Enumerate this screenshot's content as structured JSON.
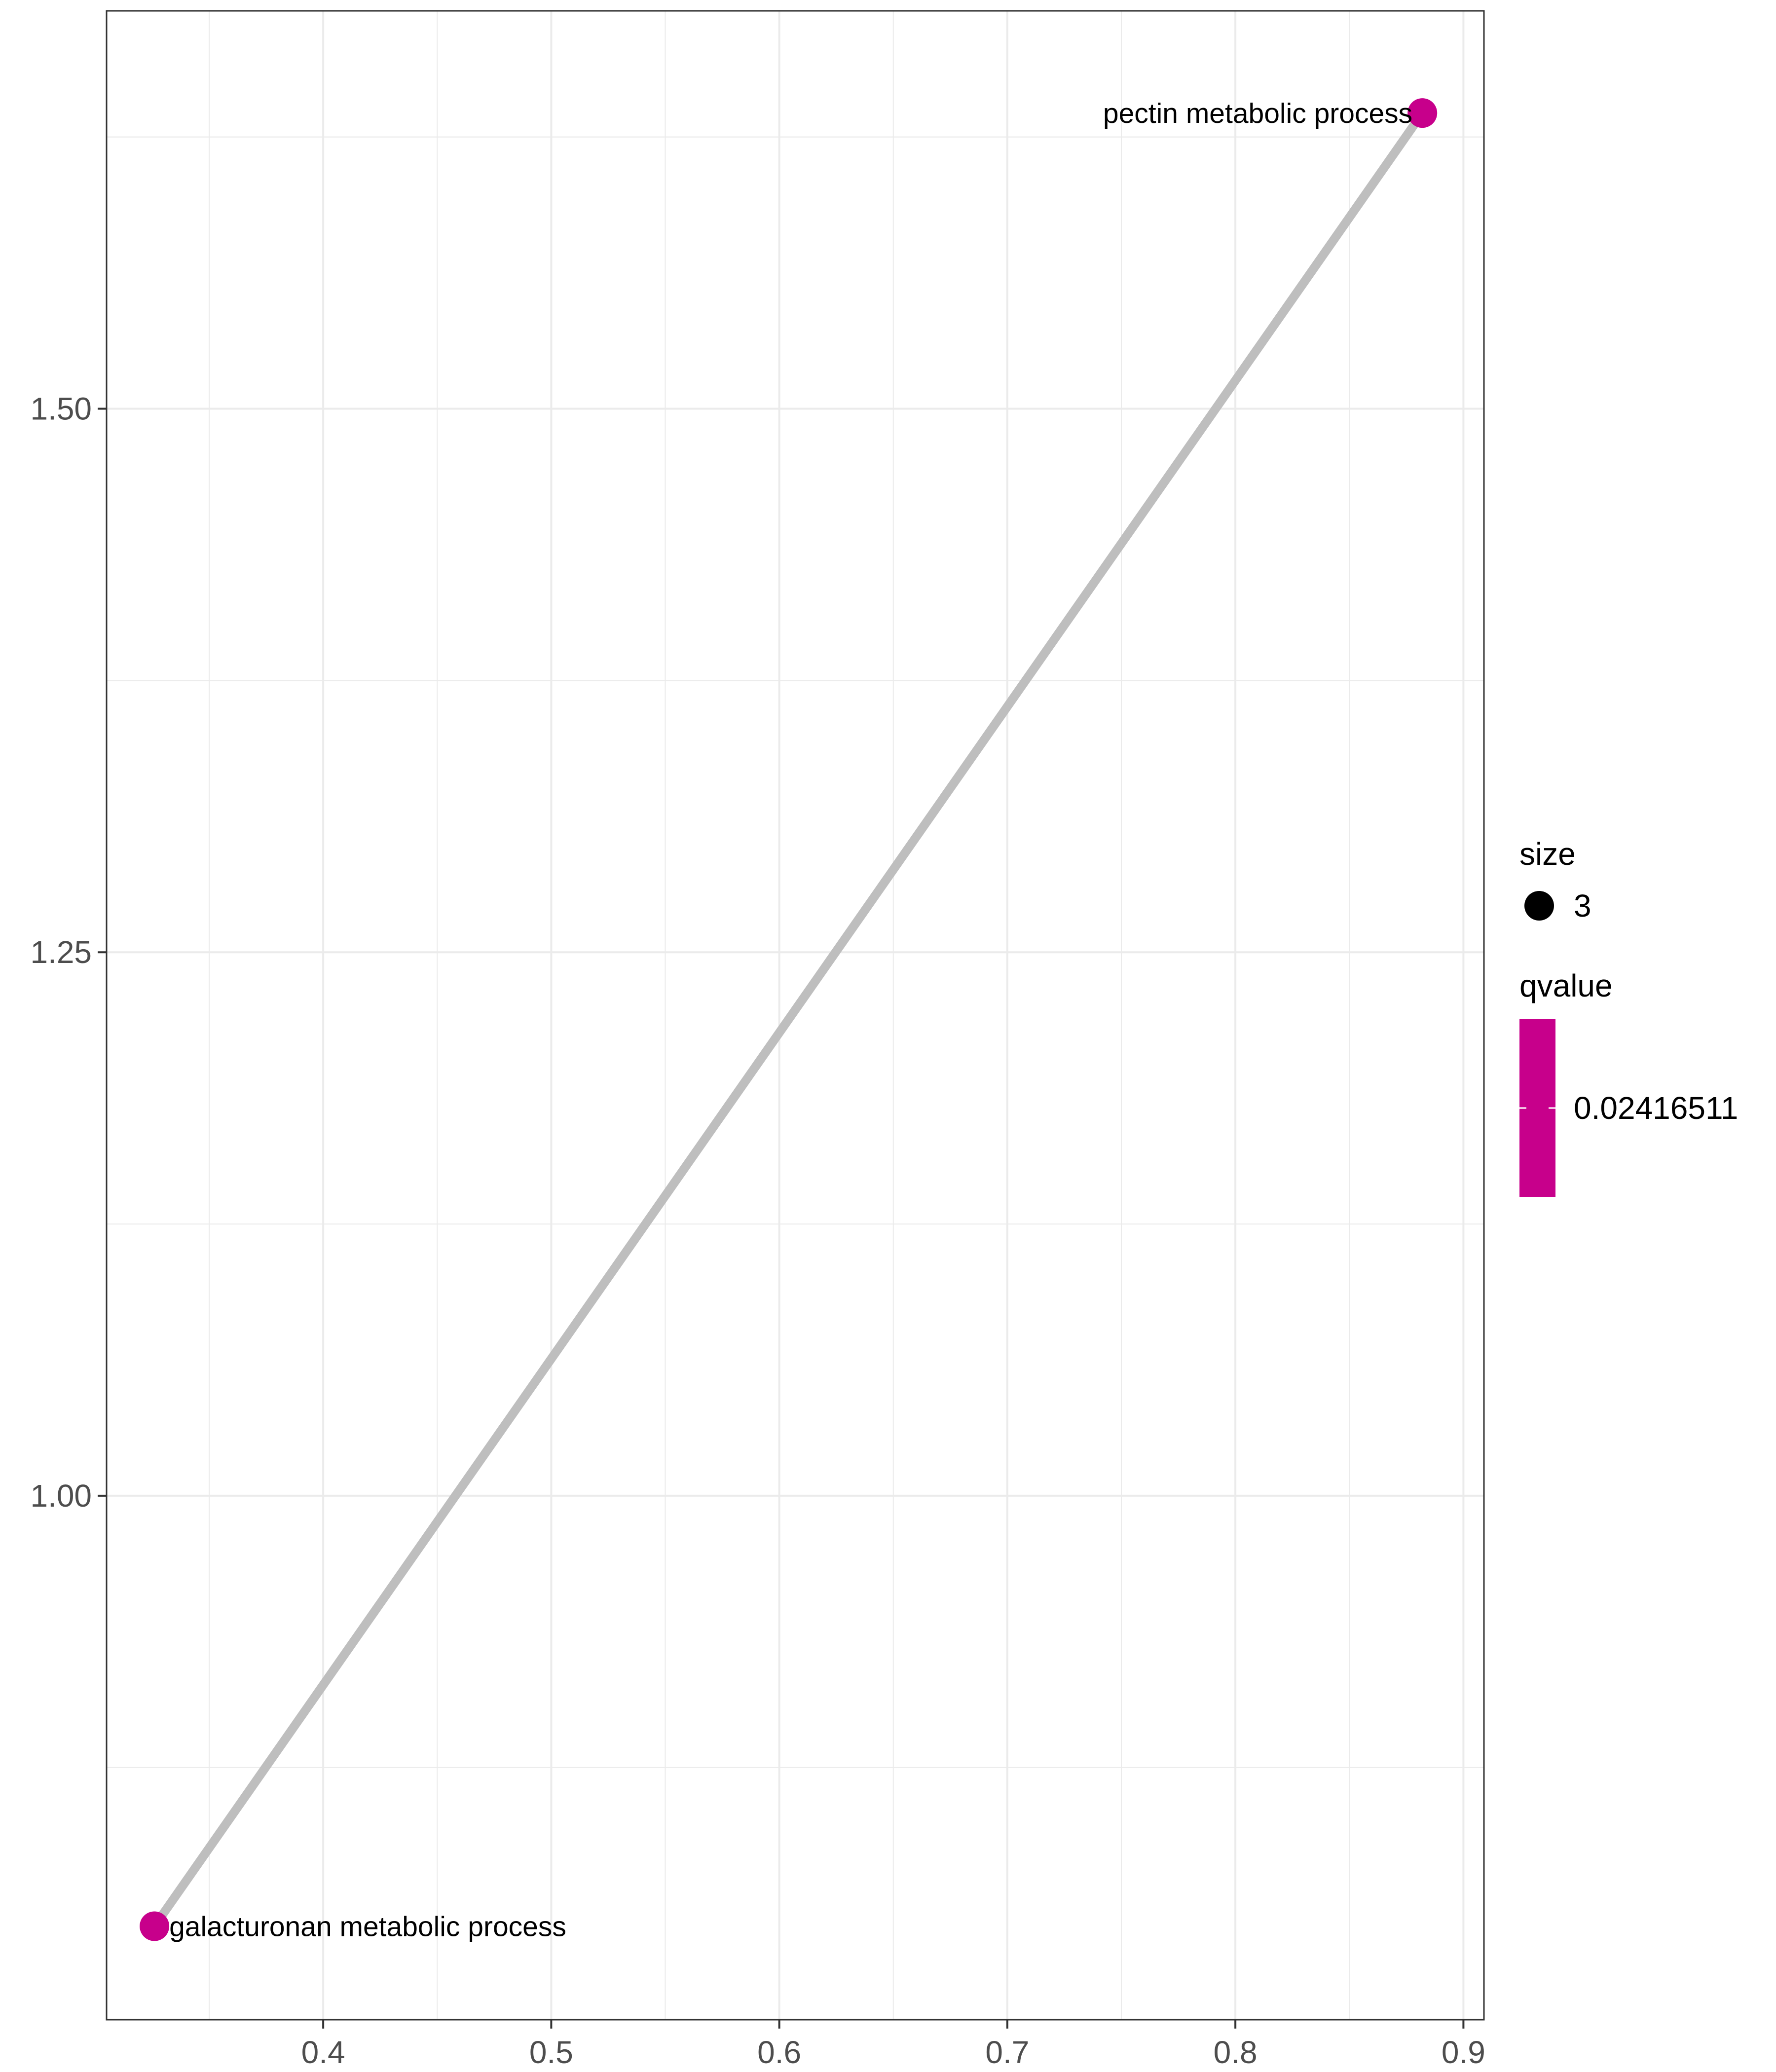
{
  "chart_data": {
    "type": "scatter",
    "title": "",
    "xlabel": "",
    "ylabel": "",
    "xlim": [
      0.305,
      0.909
    ],
    "ylim": [
      0.759,
      1.683
    ],
    "x_ticks": [
      0.4,
      0.5,
      0.6,
      0.7,
      0.8,
      0.9
    ],
    "x_tick_labels": [
      "0.4",
      "0.5",
      "0.6",
      "0.7",
      "0.8",
      "0.9"
    ],
    "y_ticks": [
      1.0,
      1.25,
      1.5
    ],
    "y_tick_labels": [
      "1.00",
      "1.25",
      "1.50"
    ],
    "grid": true,
    "points": [
      {
        "x": 0.326,
        "y": 0.802,
        "label": "galacturonan metabolic process",
        "size": 3,
        "qvalue": 0.02416511
      },
      {
        "x": 0.882,
        "y": 1.636,
        "label": "pectin metabolic process",
        "size": 3,
        "qvalue": 0.02416511
      }
    ],
    "edges": [
      {
        "from": 0,
        "to": 1
      }
    ],
    "colors": {
      "point": "#C7008B",
      "edge": "#BEBEBE",
      "grid": "#EBEBEB"
    },
    "legend": {
      "position": "right",
      "size_title": "size",
      "size_value": "3",
      "color_title": "qvalue",
      "color_value": "0.02416511"
    }
  }
}
